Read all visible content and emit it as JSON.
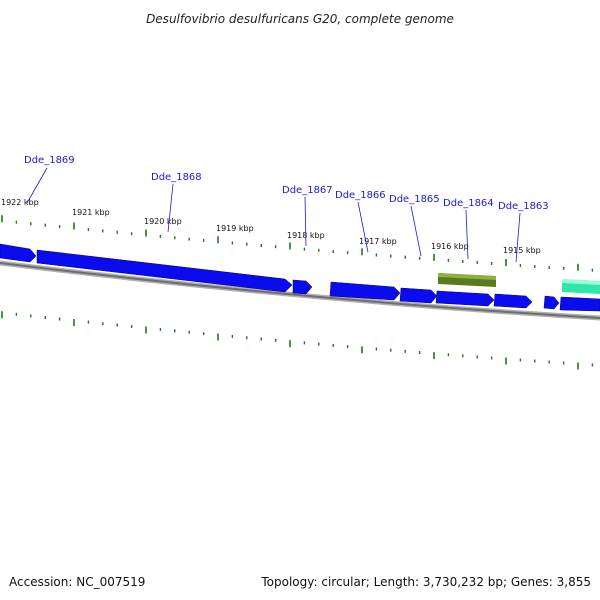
{
  "title": "Desulfovibrio desulfuricans G20, complete genome",
  "footer": {
    "accession": "Accession: NC_007519",
    "summary": "Topology: circular; Length: 3,730,232 bp; Genes: 3,855"
  },
  "colors": {
    "background": "#ffffff",
    "backbone": "#808080",
    "tick": "#1a7a1a",
    "gene_forward": "#0b0bf0",
    "gene_highlight": "#5a7a1e",
    "gene_teal": "#2ee8a8",
    "label": "#1a1ad6"
  },
  "chart_data": {
    "type": "genome-map",
    "scale_labels": [
      {
        "kbp": 1922,
        "label": "1922 kbp"
      },
      {
        "kbp": 1921,
        "label": "1921 kbp"
      },
      {
        "kbp": 1920,
        "label": "1920 kbp"
      },
      {
        "kbp": 1919,
        "label": "1919 kbp"
      },
      {
        "kbp": 1918,
        "label": "1918 kbp"
      },
      {
        "kbp": 1917,
        "label": "1917 kbp"
      },
      {
        "kbp": 1916,
        "label": "1916 kbp"
      },
      {
        "kbp": 1915,
        "label": "1915 kbp"
      }
    ],
    "genes": [
      {
        "name": "Dde_1869"
      },
      {
        "name": "Dde_1868"
      },
      {
        "name": "Dde_1867"
      },
      {
        "name": "Dde_1866"
      },
      {
        "name": "Dde_1865"
      },
      {
        "name": "Dde_1864"
      },
      {
        "name": "Dde_1863"
      }
    ]
  }
}
